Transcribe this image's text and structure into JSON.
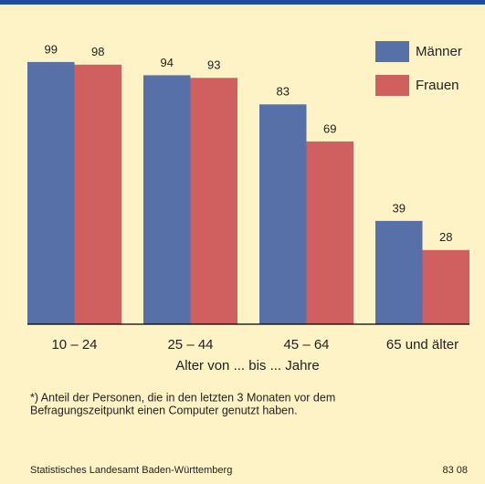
{
  "chart_data": {
    "type": "bar",
    "categories": [
      "10 – 24",
      "25 – 44",
      "45 – 64",
      "65 und älter"
    ],
    "series": [
      {
        "name": "Männer",
        "color": "#5771a8",
        "values": [
          99,
          94,
          83,
          39
        ]
      },
      {
        "name": "Frauen",
        "color": "#d0605f",
        "values": [
          98,
          93,
          69,
          28
        ]
      }
    ],
    "x_label": "Alter von ... bis ... Jahre",
    "footnote": [
      "*) Anteil der Personen, die in den letzten 3 Monaten vor dem",
      "Befragungszeitpunkt einen Computer genutzt haben."
    ],
    "source": "Statistisches Landesamt Baden-Württemberg",
    "code": "83 08"
  }
}
